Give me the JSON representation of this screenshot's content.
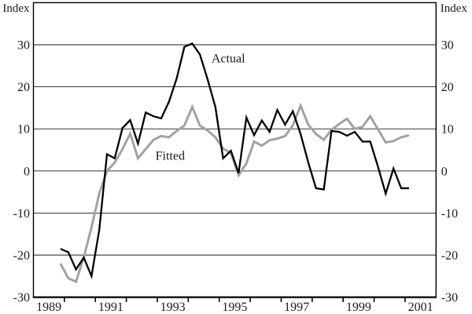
{
  "chart_data": {
    "type": "line",
    "title": "",
    "axis_title_left": "Index",
    "axis_title_right": "Index",
    "grid": true,
    "legend_position": "inline-annotations",
    "x_axis": {
      "range": [
        1989,
        2002
      ],
      "tick_years": [
        1990,
        1991,
        1992,
        1993,
        1994,
        1995,
        1996,
        1997,
        1998,
        1999,
        2000,
        2001
      ],
      "label_years": [
        "1989",
        "1991",
        "1993",
        "1995",
        "1997",
        "1999",
        "2001"
      ]
    },
    "y_axis": {
      "range": [
        -30,
        40
      ],
      "gridline_values": [
        30,
        20,
        10,
        0,
        -10,
        -20
      ],
      "tick_labels": [
        "30",
        "20",
        "10",
        "0",
        "-10",
        "-20",
        "-30"
      ],
      "tick_values": [
        30,
        20,
        10,
        0,
        -10,
        -20,
        -30
      ]
    },
    "series": [
      {
        "name": "Fitted",
        "color": "#a2a2a2",
        "stroke_width": 3,
        "start_year": 1989.875,
        "step_years": 0.25,
        "values": [
          -22.0,
          -25.5,
          -26.3,
          -20.5,
          -13.4,
          -5.4,
          0.0,
          2.0,
          5.2,
          8.9,
          3.0,
          5.2,
          7.4,
          8.3,
          8.0,
          9.5,
          10.8,
          15.2,
          10.8,
          9.6,
          8.0,
          5.3,
          4.3,
          -1.0,
          1.8,
          7.0,
          6.0,
          7.3,
          7.7,
          8.3,
          10.8,
          15.5,
          11.0,
          8.8,
          7.4,
          9.8,
          11.2,
          12.4,
          10.0,
          10.5,
          13.0,
          9.9,
          6.8,
          7.1,
          8.0,
          8.5
        ]
      },
      {
        "name": "Actual",
        "color": "#000000",
        "stroke_width": 2.3,
        "start_year": 1989.875,
        "step_years": 0.25,
        "values": [
          -18.5,
          -19.3,
          -23.4,
          -20.6,
          -25.0,
          -14.0,
          4.0,
          3.0,
          10.2,
          12.1,
          6.5,
          13.9,
          13.0,
          12.5,
          16.4,
          22.0,
          29.5,
          30.3,
          27.7,
          21.7,
          15.2,
          3.0,
          4.8,
          -0.5,
          12.7,
          8.5,
          12.0,
          9.3,
          14.5,
          11.0,
          14.2,
          8.8,
          2.0,
          -4.1,
          -4.4,
          9.5,
          9.3,
          8.4,
          9.3,
          7.0,
          7.0,
          1.0,
          -5.4,
          0.6,
          -4.1,
          -4.1
        ]
      }
    ],
    "annotations": [
      {
        "text": "Actual",
        "year": 1994.75,
        "value": 26.8
      },
      {
        "text": "Fitted",
        "year": 1992.94,
        "value": 3.7
      }
    ]
  }
}
